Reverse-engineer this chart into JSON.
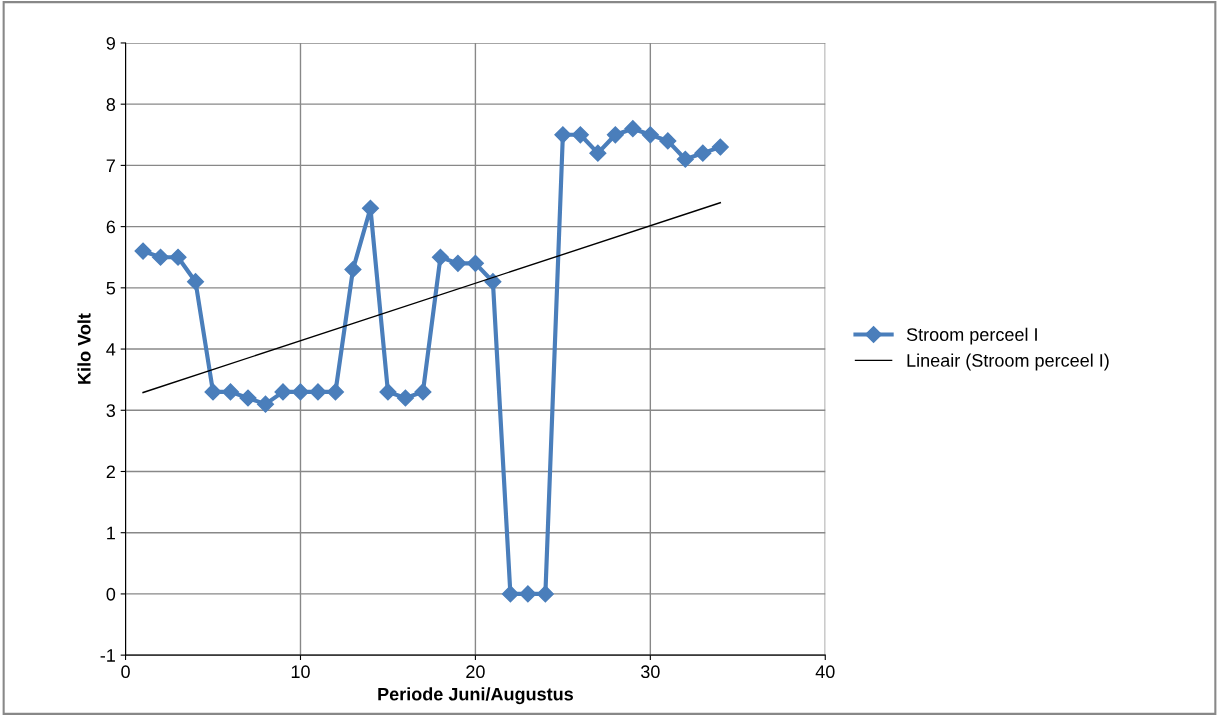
{
  "chart_data": {
    "type": "line",
    "xlabel": "Periode Juni/Augustus",
    "ylabel": "Kilo Volt",
    "xlim": [
      0,
      40
    ],
    "xticks": [
      0,
      10,
      20,
      30,
      40
    ],
    "ylim": [
      -1,
      9
    ],
    "yticks": [
      -1,
      0,
      1,
      2,
      3,
      4,
      5,
      6,
      7,
      8,
      9
    ],
    "grid": true,
    "legend": "right",
    "marker": "diamond",
    "series": [
      {
        "name": "Stroom perceel I",
        "color": "#4a7ebb",
        "x": [
          1,
          2,
          3,
          4,
          5,
          6,
          7,
          8,
          9,
          10,
          11,
          12,
          13,
          14,
          15,
          16,
          17,
          18,
          19,
          20,
          21,
          22,
          23,
          24,
          25,
          26,
          27,
          28,
          29,
          30,
          31,
          32,
          33,
          34
        ],
        "values": [
          5.6,
          5.5,
          5.5,
          5.1,
          3.3,
          3.3,
          3.2,
          3.1,
          3.3,
          3.3,
          3.3,
          3.3,
          5.3,
          6.3,
          3.3,
          3.2,
          3.3,
          5.5,
          5.4,
          5.4,
          5.1,
          0,
          0,
          0,
          7.5,
          7.5,
          7.2,
          7.5,
          7.6,
          7.5,
          7.4,
          7.1,
          7.2,
          7.3
        ]
      },
      {
        "name": "Lineair (Stroom perceel I)",
        "color": "#000000",
        "type": "line",
        "marker": "none",
        "x": [
          1,
          34
        ],
        "values": [
          3.29,
          6.39
        ]
      }
    ]
  }
}
